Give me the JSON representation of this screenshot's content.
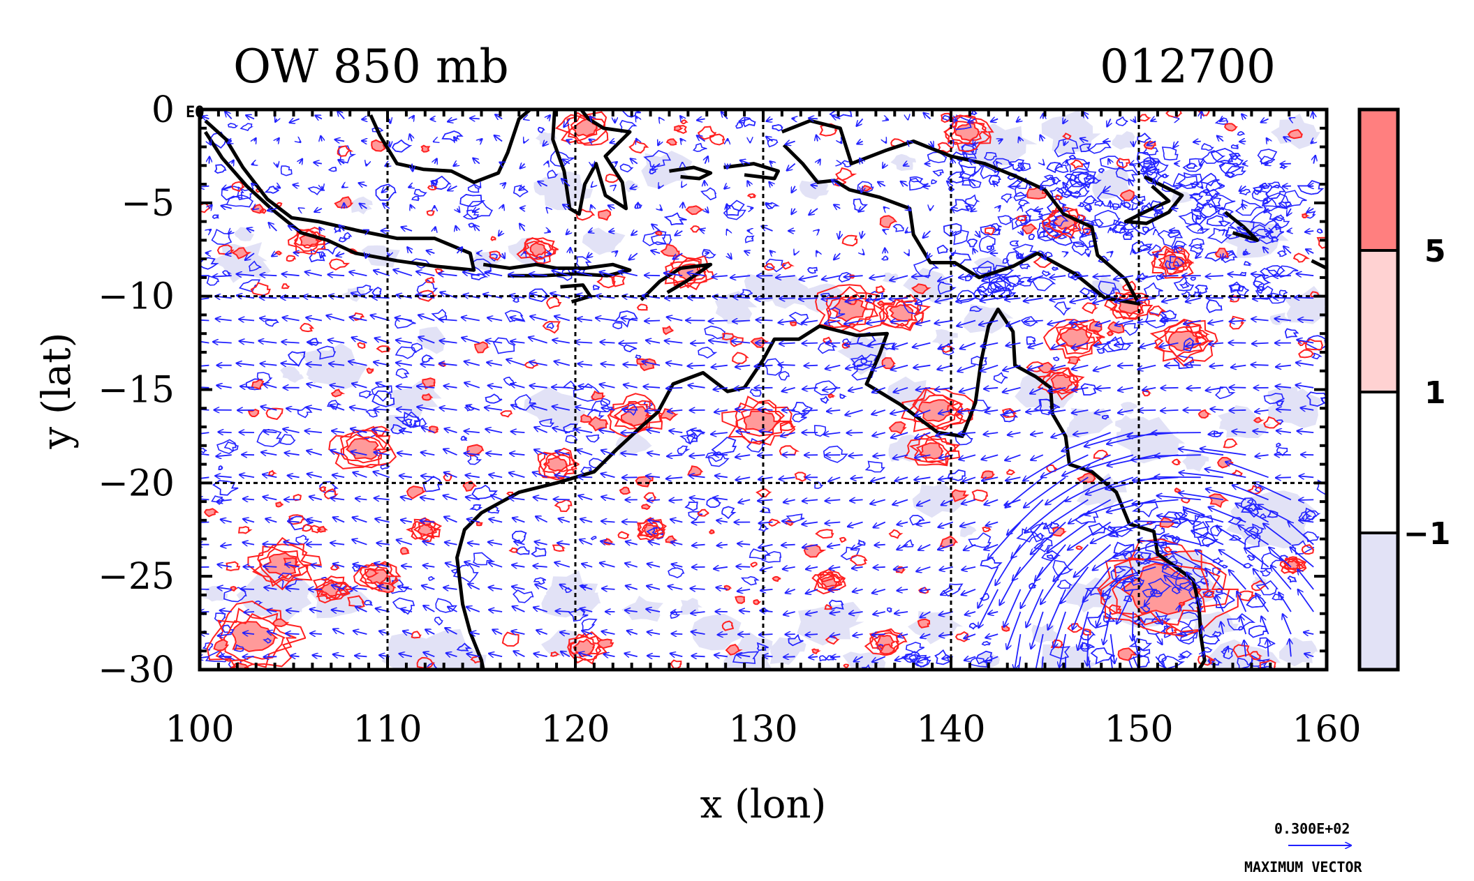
{
  "title_left": "OW 850 mb",
  "title_right": "012700",
  "corner_label": "EQ",
  "legend_vector": {
    "value": "0.300E+02",
    "caption": "MAXIMUM VECTOR"
  },
  "colorbar": {
    "levels": [
      {
        "label": "5",
        "color": "#ff7f7f"
      },
      {
        "label": "1",
        "color": "#ffd2d2"
      },
      {
        "label": "−1",
        "color": "#ffffff"
      },
      {
        "label": "",
        "color": "#e2e2f6"
      }
    ]
  },
  "colors": {
    "positive_contour": "#ff2020",
    "negative_contour": "#2424ff",
    "vector": "#2020ff",
    "coast": "#000000",
    "grid": "#000000"
  },
  "chart_data": {
    "type": "map",
    "xlabel": "x (lon)",
    "ylabel": "y (lat)",
    "xlim": [
      100,
      160
    ],
    "ylim": [
      -30,
      0
    ],
    "x_ticks": [
      100,
      110,
      120,
      130,
      140,
      150,
      160
    ],
    "y_ticks": [
      0,
      -5,
      -10,
      -15,
      -20,
      -25,
      -30
    ],
    "x_tick_labels": [
      "100",
      "110",
      "120",
      "130",
      "140",
      "150",
      "160"
    ],
    "y_tick_labels": [
      "0",
      "−5",
      "−10",
      "−15",
      "−20",
      "−25",
      "−30"
    ],
    "grid_lon": [
      110,
      120,
      130,
      140,
      150
    ],
    "grid_lat": [
      -10,
      -20
    ],
    "coastlines": [
      [
        [
          100.3,
          -0.6
        ],
        [
          101.4,
          -1.6
        ],
        [
          102.3,
          -3.1
        ],
        [
          103.6,
          -4.8
        ],
        [
          104.9,
          -5.8
        ],
        [
          106.3,
          -6.0
        ],
        [
          108.5,
          -6.5
        ],
        [
          110.5,
          -6.9
        ],
        [
          112.5,
          -6.9
        ],
        [
          114.4,
          -7.7
        ],
        [
          114.6,
          -8.6
        ],
        [
          112.6,
          -8.4
        ],
        [
          110.5,
          -8.1
        ],
        [
          108.3,
          -7.7
        ],
        [
          106.8,
          -7.0
        ],
        [
          105.4,
          -6.6
        ],
        [
          103.8,
          -5.3
        ],
        [
          102.5,
          -4.1
        ],
        [
          101.2,
          -2.6
        ],
        [
          100.3,
          -1.2
        ]
      ],
      [
        [
          109.1,
          -0.3
        ],
        [
          109.6,
          -1.4
        ],
        [
          110.5,
          -2.9
        ],
        [
          111.9,
          -3.2
        ],
        [
          113.4,
          -3.3
        ],
        [
          114.6,
          -3.9
        ],
        [
          115.9,
          -3.4
        ],
        [
          116.4,
          -2.3
        ],
        [
          117.0,
          -0.5
        ],
        [
          117.6,
          0.0
        ]
      ],
      [
        [
          118.9,
          0.0
        ],
        [
          118.8,
          -1.6
        ],
        [
          119.4,
          -3.3
        ],
        [
          119.7,
          -5.3
        ],
        [
          120.2,
          -5.6
        ],
        [
          120.5,
          -4.0
        ],
        [
          121.1,
          -2.9
        ],
        [
          121.6,
          -4.6
        ],
        [
          122.7,
          -5.3
        ],
        [
          122.5,
          -3.9
        ],
        [
          121.6,
          -2.5
        ],
        [
          122.9,
          -1.2
        ],
        [
          121.5,
          -1.0
        ],
        [
          120.7,
          -0.5
        ],
        [
          120.3,
          0.0
        ]
      ],
      [
        [
          125.0,
          -3.3
        ],
        [
          126.3,
          -3.1
        ],
        [
          127.2,
          -3.4
        ],
        [
          126.6,
          -3.7
        ],
        [
          125.6,
          -3.6
        ]
      ],
      [
        [
          127.9,
          -3.1
        ],
        [
          129.5,
          -2.9
        ],
        [
          130.8,
          -3.3
        ],
        [
          130.6,
          -3.7
        ],
        [
          129.0,
          -3.5
        ]
      ],
      [
        [
          115.1,
          -8.3
        ],
        [
          116.5,
          -8.5
        ],
        [
          117.9,
          -8.3
        ],
        [
          119.0,
          -8.5
        ],
        [
          120.5,
          -8.5
        ],
        [
          122.0,
          -8.3
        ],
        [
          122.9,
          -8.6
        ],
        [
          121.7,
          -8.9
        ],
        [
          120.0,
          -8.8
        ],
        [
          118.3,
          -8.9
        ],
        [
          116.4,
          -8.9
        ]
      ],
      [
        [
          119.2,
          -9.5
        ],
        [
          120.4,
          -9.4
        ],
        [
          120.8,
          -10.0
        ],
        [
          119.8,
          -10.3
        ]
      ],
      [
        [
          123.5,
          -10.2
        ],
        [
          124.5,
          -9.2
        ],
        [
          125.6,
          -8.5
        ],
        [
          127.2,
          -8.3
        ],
        [
          125.9,
          -9.2
        ],
        [
          124.9,
          -9.8
        ]
      ],
      [
        [
          131.0,
          -1.2
        ],
        [
          132.5,
          -0.6
        ],
        [
          134.1,
          -1.0
        ],
        [
          134.7,
          -2.9
        ],
        [
          136.5,
          -2.2
        ],
        [
          138.0,
          -1.7
        ],
        [
          140.0,
          -2.5
        ],
        [
          141.8,
          -2.9
        ],
        [
          143.5,
          -3.6
        ],
        [
          145.0,
          -4.3
        ],
        [
          146.0,
          -5.6
        ],
        [
          147.5,
          -6.3
        ],
        [
          147.8,
          -7.8
        ],
        [
          149.3,
          -9.1
        ],
        [
          150.0,
          -10.4
        ],
        [
          148.2,
          -10.1
        ],
        [
          146.6,
          -8.8
        ],
        [
          144.6,
          -7.7
        ],
        [
          143.3,
          -8.4
        ],
        [
          141.5,
          -9.0
        ],
        [
          140.2,
          -8.2
        ],
        [
          138.9,
          -8.2
        ],
        [
          138.0,
          -6.7
        ],
        [
          137.8,
          -5.3
        ],
        [
          136.2,
          -4.7
        ],
        [
          134.6,
          -4.3
        ],
        [
          133.8,
          -3.8
        ],
        [
          132.9,
          -3.9
        ],
        [
          132.1,
          -2.9
        ],
        [
          131.1,
          -1.9
        ]
      ],
      [
        [
          150.3,
          -3.6
        ],
        [
          151.5,
          -4.2
        ],
        [
          152.3,
          -4.6
        ],
        [
          151.6,
          -5.5
        ],
        [
          150.4,
          -6.1
        ],
        [
          149.3,
          -6.0
        ],
        [
          150.5,
          -5.4
        ],
        [
          151.6,
          -4.9
        ],
        [
          150.7,
          -4.1
        ]
      ],
      [
        [
          154.6,
          -5.5
        ],
        [
          155.6,
          -6.3
        ],
        [
          156.3,
          -7.0
        ],
        [
          155.0,
          -6.6
        ]
      ],
      [
        [
          159.2,
          -8.1
        ],
        [
          160.0,
          -8.5
        ]
      ],
      [
        [
          129.0,
          -14.9
        ],
        [
          130.0,
          -13.4
        ],
        [
          130.6,
          -12.3
        ],
        [
          131.9,
          -12.3
        ],
        [
          133.0,
          -11.6
        ],
        [
          135.0,
          -12.1
        ],
        [
          136.6,
          -12.0
        ],
        [
          136.2,
          -13.1
        ],
        [
          135.5,
          -14.7
        ],
        [
          137.3,
          -15.8
        ],
        [
          139.3,
          -17.3
        ],
        [
          140.6,
          -17.5
        ],
        [
          141.3,
          -15.7
        ],
        [
          141.6,
          -13.5
        ],
        [
          142.0,
          -11.6
        ],
        [
          142.5,
          -10.7
        ],
        [
          143.3,
          -11.9
        ],
        [
          143.4,
          -13.7
        ],
        [
          144.5,
          -14.3
        ],
        [
          145.3,
          -14.9
        ],
        [
          145.4,
          -16.3
        ],
        [
          146.1,
          -17.5
        ],
        [
          146.3,
          -19.0
        ],
        [
          147.5,
          -19.4
        ],
        [
          148.8,
          -20.5
        ],
        [
          149.5,
          -22.2
        ],
        [
          150.8,
          -22.6
        ],
        [
          151.0,
          -23.8
        ],
        [
          152.9,
          -25.2
        ],
        [
          153.2,
          -26.6
        ],
        [
          153.3,
          -28.2
        ],
        [
          153.5,
          -29.5
        ],
        [
          153.2,
          -30.0
        ]
      ],
      [
        [
          129.0,
          -14.9
        ],
        [
          128.1,
          -15.1
        ],
        [
          126.8,
          -14.1
        ],
        [
          125.2,
          -14.7
        ],
        [
          124.4,
          -16.2
        ],
        [
          123.5,
          -17.0
        ],
        [
          122.2,
          -18.2
        ],
        [
          121.0,
          -19.4
        ],
        [
          119.0,
          -20.0
        ],
        [
          117.0,
          -20.5
        ],
        [
          115.0,
          -21.6
        ],
        [
          114.1,
          -22.5
        ],
        [
          113.7,
          -24.0
        ],
        [
          114.0,
          -26.5
        ],
        [
          114.4,
          -28.0
        ],
        [
          115.0,
          -29.5
        ],
        [
          115.1,
          -30.0
        ]
      ]
    ],
    "scalar_field": "Okubo-Weiss parameter at 850 mb",
    "vector_field": "wind at 850 mb"
  }
}
